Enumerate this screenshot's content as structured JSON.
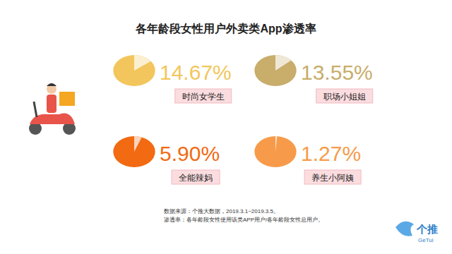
{
  "chart_data": {
    "type": "pie",
    "title": "各年龄段女性用户外卖类App渗透率",
    "categories": [
      "时尚女学生",
      "职场小姐姐",
      "全能辣妈",
      "养生小阿姨"
    ],
    "values": [
      14.67,
      13.55,
      5.9,
      1.27
    ],
    "value_labels": [
      "14.67%",
      "13.55%",
      "5.90%",
      "1.27%"
    ],
    "colors": [
      "#f2c65c",
      "#c8ad6b",
      "#f26a12",
      "#f79b4a"
    ],
    "data_labels": true,
    "annotations": [
      "数据来源：个推大数据，2019.3.1~2019.3.5。",
      "渗透率：各年龄段女性使用该类APP用户/各年龄段女性总用户。"
    ]
  },
  "logo": {
    "text": "个推",
    "subtext": "GeTui"
  }
}
